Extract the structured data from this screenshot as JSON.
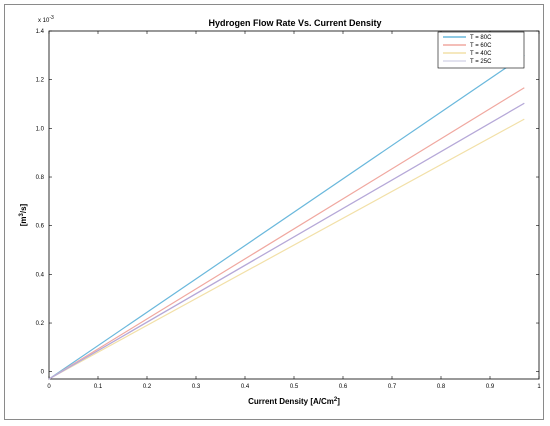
{
  "chart_data": {
    "type": "line",
    "title": "Hydrogen Flow Rate Vs. Current Density",
    "xlabel": "Current Density  [A/Cm",
    "xlabel_sup": "2",
    "xlabel_end": "]",
    "ylabel": "[m",
    "ylabel_sup": "3",
    "ylabel_end": "/s]",
    "y_multiplier": "x 10",
    "y_multiplier_exp": "-3",
    "xlim": [
      0,
      1
    ],
    "ylim": [
      -3e-05,
      0.0014
    ],
    "x_ticks": [
      "0",
      "0.1",
      "0.2",
      "0.3",
      "0.4",
      "0.5",
      "0.6",
      "0.7",
      "0.8",
      "0.9",
      "1"
    ],
    "y_ticks": [
      "0",
      "0.2",
      "0.4",
      "0.6",
      "0.8",
      "1.0",
      "1.2",
      "1.4"
    ],
    "legend_position": "top-right",
    "grid": false,
    "series": [
      {
        "name": "T = 80C",
        "color": "#6ab8dc",
        "x": [
          0,
          0.97
        ],
        "y": [
          -3e-05,
          0.0013
        ]
      },
      {
        "name": "T = 60C",
        "color": "#f0a8a0",
        "x": [
          0,
          0.97
        ],
        "y": [
          -3e-05,
          0.001167
        ]
      },
      {
        "name": "T = 40C",
        "color": "#f2e0a8",
        "x": [
          0,
          0.97
        ],
        "y": [
          -3e-05,
          0.001038
        ]
      },
      {
        "name": "T = 25C",
        "color": "#d8d8ea",
        "x": [
          0,
          0.97
        ],
        "y": [
          -3e-05,
          0.001103
        ]
      },
      {
        "name": "",
        "color": "#b6a8d8",
        "x": [
          0,
          0.97
        ],
        "y": [
          -3e-05,
          0.001103
        ]
      }
    ]
  }
}
